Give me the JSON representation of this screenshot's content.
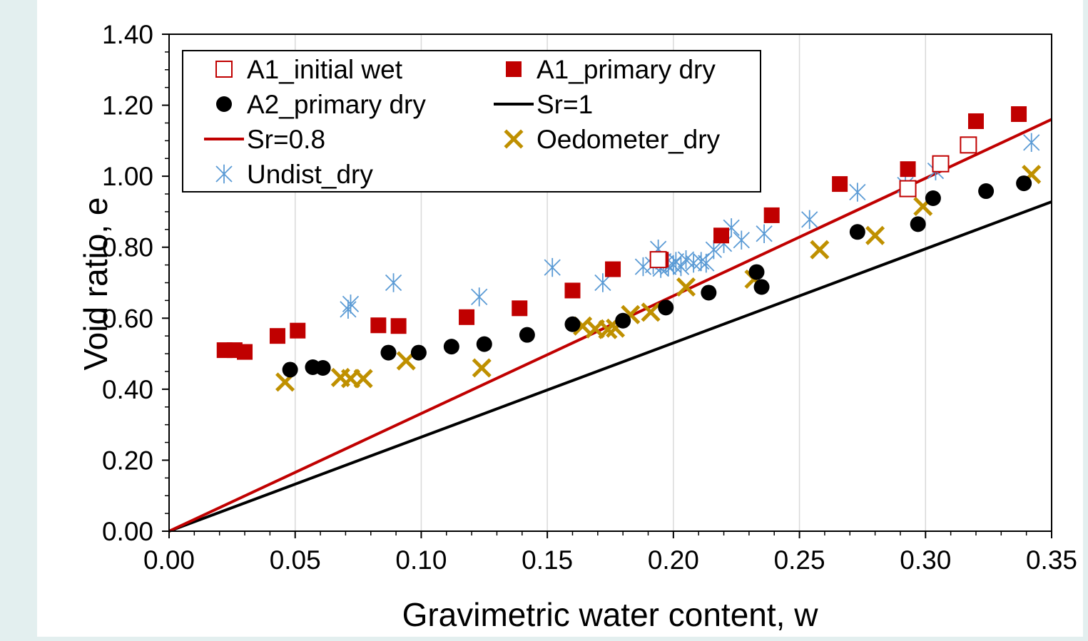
{
  "chart_data": {
    "type": "scatter",
    "title": "",
    "xlabel": "Gravimetric water content, w",
    "ylabel": "Void ratio, e",
    "xlim": [
      0,
      0.35
    ],
    "ylim": [
      0,
      1.4
    ],
    "x_ticks": [
      "0.00",
      "0.05",
      "0.10",
      "0.15",
      "0.20",
      "0.25",
      "0.30",
      "0.35"
    ],
    "y_ticks": [
      "0.00",
      "0.20",
      "0.40",
      "0.60",
      "0.80",
      "1.00",
      "1.20",
      "1.40"
    ],
    "grid": "vertical",
    "legend_position": "top-left",
    "series": [
      {
        "name": "A1_initial wet",
        "marker": "open-square",
        "color": "#c00000",
        "points": [
          [
            0.194,
            0.765
          ],
          [
            0.293,
            0.965
          ],
          [
            0.306,
            1.035
          ],
          [
            0.317,
            1.088
          ]
        ]
      },
      {
        "name": "A1_primary dry",
        "marker": "filled-square",
        "color": "#c00000",
        "points": [
          [
            0.022,
            0.51
          ],
          [
            0.026,
            0.51
          ],
          [
            0.03,
            0.505
          ],
          [
            0.043,
            0.55
          ],
          [
            0.051,
            0.565
          ],
          [
            0.083,
            0.58
          ],
          [
            0.091,
            0.578
          ],
          [
            0.118,
            0.603
          ],
          [
            0.139,
            0.628
          ],
          [
            0.16,
            0.678
          ],
          [
            0.176,
            0.738
          ],
          [
            0.195,
            0.765
          ],
          [
            0.219,
            0.833
          ],
          [
            0.239,
            0.89
          ],
          [
            0.266,
            0.978
          ],
          [
            0.293,
            1.02
          ],
          [
            0.32,
            1.155
          ],
          [
            0.337,
            1.175
          ]
        ]
      },
      {
        "name": "A2_primary dry",
        "marker": "filled-circle",
        "color": "#000000",
        "points": [
          [
            0.048,
            0.455
          ],
          [
            0.057,
            0.462
          ],
          [
            0.061,
            0.46
          ],
          [
            0.087,
            0.503
          ],
          [
            0.099,
            0.503
          ],
          [
            0.112,
            0.52
          ],
          [
            0.125,
            0.527
          ],
          [
            0.142,
            0.553
          ],
          [
            0.16,
            0.583
          ],
          [
            0.18,
            0.593
          ],
          [
            0.197,
            0.63
          ],
          [
            0.214,
            0.672
          ],
          [
            0.233,
            0.73
          ],
          [
            0.235,
            0.688
          ],
          [
            0.273,
            0.843
          ],
          [
            0.297,
            0.865
          ],
          [
            0.303,
            0.938
          ],
          [
            0.324,
            0.958
          ],
          [
            0.339,
            0.98
          ]
        ]
      },
      {
        "name": "Sr=1",
        "marker": "line",
        "color": "#000000",
        "points": [
          [
            0,
            0
          ],
          [
            0.35,
            0.928
          ]
        ]
      },
      {
        "name": "Sr=0.8",
        "marker": "line",
        "color": "#c00000",
        "points": [
          [
            0,
            0
          ],
          [
            0.35,
            1.16
          ]
        ]
      },
      {
        "name": "Oedometer_dry",
        "marker": "cross",
        "color": "#bf9000",
        "points": [
          [
            0.046,
            0.42
          ],
          [
            0.068,
            0.433
          ],
          [
            0.072,
            0.43
          ],
          [
            0.077,
            0.43
          ],
          [
            0.094,
            0.48
          ],
          [
            0.124,
            0.46
          ],
          [
            0.164,
            0.578
          ],
          [
            0.169,
            0.57
          ],
          [
            0.174,
            0.568
          ],
          [
            0.177,
            0.572
          ],
          [
            0.183,
            0.61
          ],
          [
            0.191,
            0.617
          ],
          [
            0.205,
            0.688
          ],
          [
            0.232,
            0.71
          ],
          [
            0.258,
            0.793
          ],
          [
            0.28,
            0.833
          ],
          [
            0.299,
            0.915
          ],
          [
            0.342,
            1.005
          ]
        ]
      },
      {
        "name": "Undist_dry",
        "marker": "star",
        "color": "#5b9bd5",
        "points": [
          [
            0.071,
            0.625
          ],
          [
            0.072,
            0.64
          ],
          [
            0.089,
            0.7
          ],
          [
            0.123,
            0.66
          ],
          [
            0.152,
            0.743
          ],
          [
            0.172,
            0.7
          ],
          [
            0.188,
            0.745
          ],
          [
            0.192,
            0.75
          ],
          [
            0.194,
            0.795
          ],
          [
            0.195,
            0.74
          ],
          [
            0.196,
            0.76
          ],
          [
            0.197,
            0.755
          ],
          [
            0.198,
            0.745
          ],
          [
            0.2,
            0.75
          ],
          [
            0.201,
            0.76
          ],
          [
            0.203,
            0.745
          ],
          [
            0.205,
            0.765
          ],
          [
            0.208,
            0.755
          ],
          [
            0.211,
            0.76
          ],
          [
            0.213,
            0.755
          ],
          [
            0.216,
            0.793
          ],
          [
            0.22,
            0.81
          ],
          [
            0.223,
            0.855
          ],
          [
            0.227,
            0.82
          ],
          [
            0.236,
            0.838
          ],
          [
            0.254,
            0.878
          ],
          [
            0.273,
            0.955
          ],
          [
            0.292,
            0.975
          ],
          [
            0.304,
            1.015
          ],
          [
            0.342,
            1.095
          ]
        ]
      }
    ]
  }
}
